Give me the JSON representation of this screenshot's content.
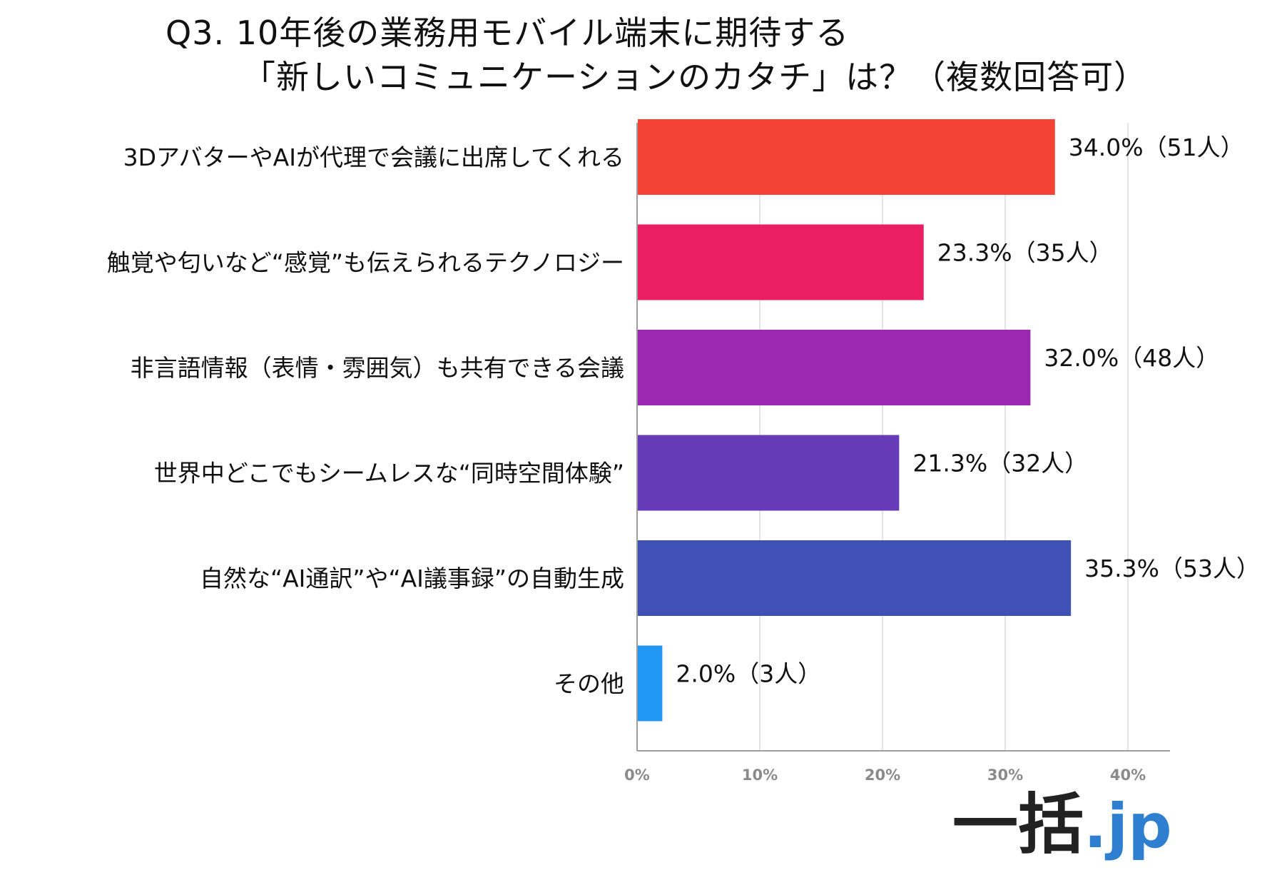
{
  "title": {
    "line1": "Q3. 10年後の業務用モバイル端末に期待する",
    "line2": "「新しいコミュニケーションのカタチ」は？（複数回答可）"
  },
  "chart_data": {
    "type": "bar",
    "orientation": "horizontal",
    "categories": [
      "3DアバターやAIが代理で会議に出席してくれる",
      "触覚や匂いなど“感覚”も伝えられるテクノロジー",
      "非言語情報（表情・雰囲気）も共有できる会議",
      "世界中どこでもシームレスな“同時空間体験”",
      "自然な“AI通訳”や“AI議事録”の自動生成",
      "その他"
    ],
    "values": [
      34.0,
      23.3,
      32.0,
      21.3,
      35.3,
      2.0
    ],
    "value_labels": [
      "34.0%（51人）",
      "23.3%（35人）",
      "32.0%（48人）",
      "21.3%（32人）",
      "35.3%（53人）",
      "2.0%（3人）"
    ],
    "colors": [
      "#f44336",
      "#e91e63",
      "#9c27b0",
      "#673ab7",
      "#3f51b5",
      "#2196f3"
    ],
    "xlim": [
      0,
      43
    ],
    "x_ticks": [
      0,
      10,
      20,
      30,
      40
    ],
    "x_tick_labels": [
      "0%",
      "10%",
      "20%",
      "30%",
      "40%"
    ],
    "grid": true,
    "xlabel": "",
    "ylabel": ""
  },
  "logo": {
    "main": "一括",
    "tld": ".jp"
  }
}
